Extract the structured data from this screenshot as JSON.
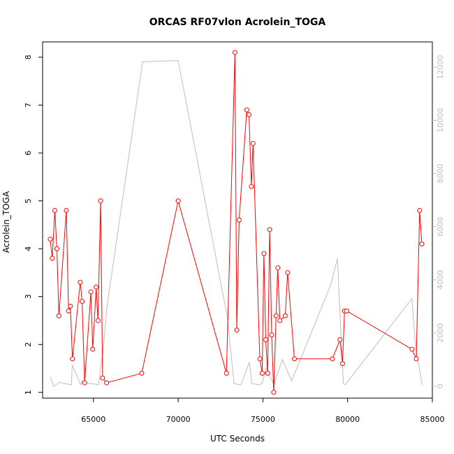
{
  "chart_data": {
    "type": "line",
    "title": "ORCAS RF07vlon Acrolein_TOGA",
    "xlabel": "UTC Seconds",
    "ylabel": "Acrolein_TOGA",
    "xlim": [
      62000,
      85000
    ],
    "ylim": [
      0.88,
      8.32
    ],
    "y2lim": [
      -450,
      12950
    ],
    "x_ticks": [
      65000,
      70000,
      75000,
      80000,
      85000
    ],
    "y_ticks": [
      1,
      2,
      3,
      4,
      5,
      6,
      7,
      8
    ],
    "y2_ticks": [
      0,
      2000,
      4000,
      6000,
      8000,
      10000,
      12000
    ],
    "colors": {
      "primary": "#ff0000",
      "secondary": "#bebebe",
      "axis": "#000000"
    },
    "series": [
      {
        "role": "primary",
        "markers": true,
        "x": [
          62450,
          62570,
          62720,
          62840,
          62960,
          63400,
          63530,
          63640,
          63760,
          64220,
          64330,
          64480,
          64850,
          64960,
          65160,
          65270,
          65420,
          65540,
          65780,
          67850,
          70000,
          72850,
          73350,
          73460,
          73600,
          74050,
          74180,
          74320,
          74420,
          74820,
          74960,
          75060,
          75170,
          75280,
          75400,
          75520,
          75640,
          75780,
          75880,
          76000,
          76320,
          76460,
          76860,
          79100,
          79550,
          79700,
          79820,
          79950,
          83800,
          84050,
          84250,
          84380
        ],
        "y": [
          4.2,
          3.8,
          4.8,
          4.0,
          2.6,
          4.8,
          2.7,
          2.8,
          1.7,
          3.3,
          2.9,
          1.2,
          3.1,
          1.9,
          3.2,
          2.5,
          5.0,
          1.3,
          1.2,
          1.4,
          5.0,
          1.4,
          8.1,
          2.3,
          4.6,
          6.9,
          6.8,
          5.3,
          6.2,
          1.7,
          1.4,
          3.9,
          2.1,
          1.4,
          4.4,
          2.2,
          1.0,
          2.6,
          3.6,
          2.5,
          2.6,
          3.5,
          1.7,
          1.7,
          2.1,
          1.6,
          2.7,
          2.7,
          1.9,
          1.7,
          4.8,
          4.1
        ]
      },
      {
        "role": "secondary",
        "markers": false,
        "x": [
          62450,
          62650,
          62900,
          63000,
          63300,
          63700,
          63750,
          64250,
          64350,
          64550,
          64900,
          65300,
          65600,
          65800,
          67900,
          70000,
          72900,
          73300,
          73700,
          74200,
          74350,
          74750,
          74950,
          75200,
          75650,
          76150,
          76700,
          79000,
          79400,
          79750,
          79850,
          83800,
          84000,
          84400
        ],
        "y": [
          350,
          0,
          100,
          150,
          100,
          50,
          800,
          50,
          200,
          100,
          100,
          50,
          1500,
          3000,
          12200,
          12250,
          2600,
          100,
          50,
          900,
          100,
          50,
          100,
          700,
          50,
          1000,
          200,
          3800,
          4800,
          100,
          50,
          3300,
          1500,
          50
        ]
      }
    ]
  }
}
